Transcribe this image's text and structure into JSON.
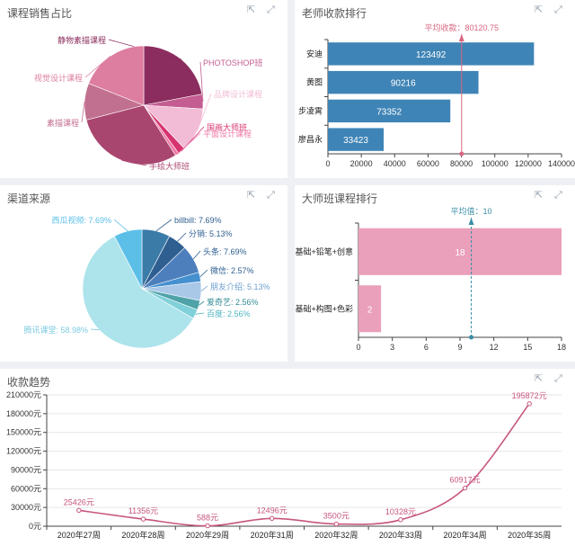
{
  "panels": {
    "course_sales": {
      "title": "课程销售占比"
    },
    "teacher_rank": {
      "title": "老师收款排行"
    },
    "channel": {
      "title": "渠道来源"
    },
    "master_rank": {
      "title": "大师班课程排行"
    },
    "trend": {
      "title": "收款趋势"
    }
  },
  "icons": [
    "export-icon",
    "fullscreen-icon"
  ],
  "colors": {
    "pink": "#e889a8",
    "blue": "#3f84b6",
    "line": "#c7557f"
  },
  "chart_data": [
    {
      "id": "course_sales",
      "type": "pie",
      "labels": [
        "静物素描课程",
        "PHOTOSHOP班",
        "品牌设计课程",
        "国画大师班",
        "平面设计课程",
        "手绘大师班",
        "素描课程",
        "视觉设计课程"
      ],
      "values": [
        22,
        4,
        12,
        2,
        1,
        30,
        10,
        19
      ],
      "colors": [
        "#8b2d5e",
        "#c45d92",
        "#f2bbd6",
        "#d6336f",
        "#f07aa8",
        "#a94670",
        "#c2708f",
        "#dd7da0"
      ]
    },
    {
      "id": "teacher_rank",
      "type": "bar",
      "orientation": "horizontal",
      "categories": [
        "安迪",
        "黄图",
        "步凌霄",
        "廖昌永"
      ],
      "values": [
        123492,
        90216,
        73352,
        33423
      ],
      "xlim": [
        0,
        140000
      ],
      "xticks": [
        "0",
        "20000",
        "40000",
        "60000",
        "80000",
        "100000",
        "120000",
        "140000"
      ],
      "mark_line": {
        "label": "平均收款：80120.75",
        "value": 80120.75
      }
    },
    {
      "id": "channel",
      "type": "pie",
      "labels": [
        "billbill: 7.69%",
        "分销: 5.13%",
        "头条: 7.69%",
        "微信: 2.57%",
        "朋友介绍: 5.13%",
        "爱奇艺: 2.56%",
        "百度: 2.56%",
        "腾讯课堂: 58.98%",
        "西瓜视频: 7.69%"
      ],
      "values": [
        7.69,
        5.13,
        7.69,
        2.57,
        5.13,
        2.56,
        2.56,
        58.98,
        7.69
      ],
      "colors": [
        "#3a7ba8",
        "#2f5f91",
        "#4d7fbd",
        "#4590cf",
        "#a9c8e8",
        "#4fa3a8",
        "#7fd0d8",
        "#ade4ec",
        "#5bbfe8"
      ]
    },
    {
      "id": "master_rank",
      "type": "bar",
      "orientation": "horizontal",
      "categories": [
        "基础+铅笔+创意",
        "基础+构图+色彩"
      ],
      "values": [
        18,
        2
      ],
      "xlim": [
        0,
        18
      ],
      "xticks": [
        "0",
        "3",
        "6",
        "9",
        "12",
        "15",
        "18"
      ],
      "mark_line": {
        "label": "平均值：10",
        "value": 10
      }
    },
    {
      "id": "trend",
      "type": "line",
      "categories": [
        "2020年27周",
        "2020年28周",
        "2020年29周",
        "2020年31周",
        "2020年32周",
        "2020年33周",
        "2020年34周",
        "2020年35周"
      ],
      "values": [
        25426,
        11356,
        588,
        12496,
        3500,
        10328,
        60917,
        195872
      ],
      "value_labels": [
        "25426元",
        "11356元",
        "588元",
        "12496元",
        "3500元",
        "10328元",
        "60917元",
        "195872元"
      ],
      "ylim": [
        0,
        210000
      ],
      "yticks": [
        "0元",
        "30000元",
        "60000元",
        "90000元",
        "120000元",
        "150000元",
        "180000元",
        "210000元"
      ]
    }
  ]
}
